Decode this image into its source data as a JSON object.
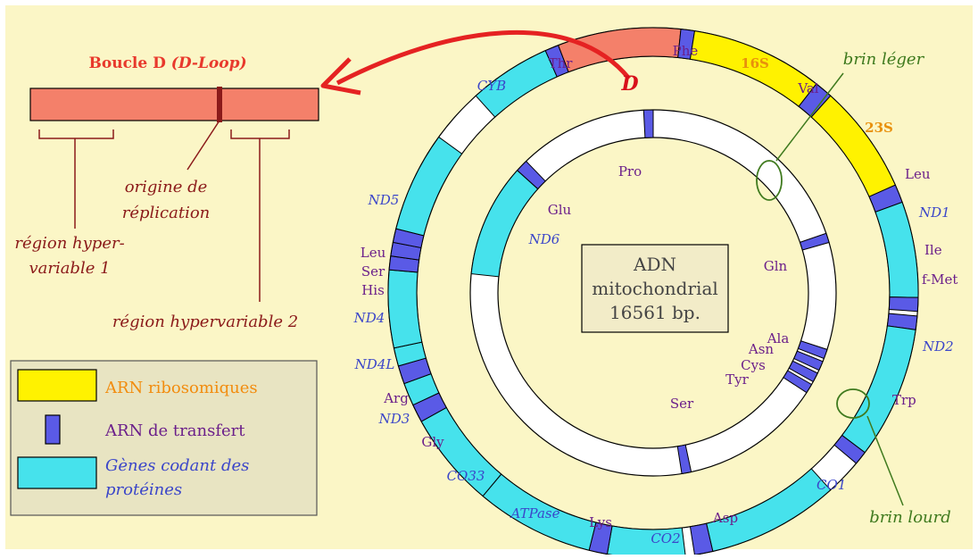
{
  "dloop": {
    "title_bold": "Boucle D ",
    "title_italic": "(D-Loop)",
    "origin_line1": "origine de",
    "origin_line2": "réplication",
    "hv1_line1": "région hyper-",
    "hv1_line2": "variable 1",
    "hv2": "région hypervariable 2",
    "d_letter": "D"
  },
  "center": {
    "line1": "ADN",
    "line2": "mitochondrial",
    "line3": "16561 bp."
  },
  "strands": {
    "light": "brin léger",
    "heavy": "brin lourd"
  },
  "legend": {
    "rrna": "ARN ribosomiques",
    "trna": "ARN de transfert",
    "protein_line1": "Gènes codant des",
    "protein_line2": "protéines"
  },
  "labels": {
    "phe": "Phe",
    "s16": "16S",
    "val": "Val",
    "s23": "23S",
    "leu_r": "Leu",
    "nd1": "ND1",
    "ile": "Ile",
    "fmet": "f-Met",
    "nd2": "ND2",
    "trp": "Trp",
    "co1": "CO1",
    "asp": "Asp",
    "co2": "CO2",
    "lys": "Lys",
    "atpase": "ATPase",
    "co33": "CO33",
    "gly": "Gly",
    "nd3": "ND3",
    "arg": "Arg",
    "nd4l": "ND4L",
    "nd4": "ND4",
    "his": "His",
    "ser_l": "Ser",
    "leu_l": "Leu",
    "nd5": "ND5",
    "cyb": "CYB",
    "thr": "Thr",
    "pro": "Pro",
    "glu": "Glu",
    "nd6": "ND6",
    "gln": "Gln",
    "ala": "Ala",
    "asn": "Asn",
    "cys": "Cys",
    "tyr": "Tyr",
    "ser_i": "Ser"
  },
  "colors": {
    "background": "#fbf6c6",
    "dloop": "#f4806a",
    "rrna": "#fff200",
    "trna": "#5a5ae6",
    "protein": "#46e2ec",
    "noncoding": "#ffffff",
    "arrow": "#e52222"
  }
}
